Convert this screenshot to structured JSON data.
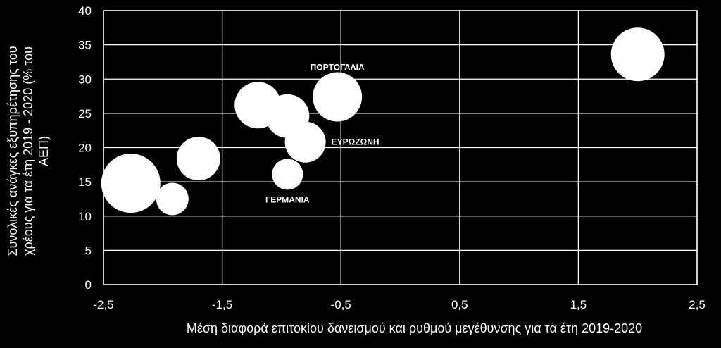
{
  "chart_data": {
    "type": "scatter",
    "title": "",
    "xlabel": "Μέση  διαφορά επιτοκίου δανεισμού και ρυθμού μεγέθυνσης  για τα έτη 2019-2020",
    "ylabel_lines": [
      "Συνολικές ανάγκες εξυπηρέτησης του",
      "χρέους για τα  έτη 2019 - 2020 (% του",
      "ΑΕΠ)"
    ],
    "xlim": [
      -2.5,
      2.5
    ],
    "ylim": [
      0,
      40
    ],
    "xticks": [
      "-2,5",
      "-1,5",
      "-0,5",
      "0,5",
      "1,5",
      "2,5"
    ],
    "xtick_values": [
      -2.5,
      -1.5,
      -0.5,
      0.5,
      1.5,
      2.5
    ],
    "yticks": [
      "0",
      "5",
      "10",
      "15",
      "20",
      "25",
      "30",
      "35",
      "40"
    ],
    "ytick_values": [
      0,
      5,
      10,
      15,
      20,
      25,
      30,
      35,
      40
    ],
    "grid": true,
    "bubble_color": "#ffffff",
    "background": "#000000",
    "points": [
      {
        "x": -2.27,
        "y": 14.8,
        "size": 42,
        "label": ""
      },
      {
        "x": -1.92,
        "y": 12.5,
        "size": 23,
        "label": ""
      },
      {
        "x": -1.7,
        "y": 18.4,
        "size": 31,
        "label": ""
      },
      {
        "x": -1.2,
        "y": 26.2,
        "size": 33,
        "label": ""
      },
      {
        "x": -0.95,
        "y": 24.6,
        "size": 31,
        "label": ""
      },
      {
        "x": -0.8,
        "y": 20.8,
        "size": 29,
        "label": "ΕΥΡΩΖΩΝΗ"
      },
      {
        "x": -0.95,
        "y": 16.1,
        "size": 22,
        "label": "ΓΕΡΜΑΝΙΑ"
      },
      {
        "x": -0.53,
        "y": 27.4,
        "size": 35,
        "label": "ΠΟΡΤΟΓΑΛΙΑ"
      },
      {
        "x": 2.0,
        "y": 33.6,
        "size": 38,
        "label": ""
      }
    ]
  }
}
